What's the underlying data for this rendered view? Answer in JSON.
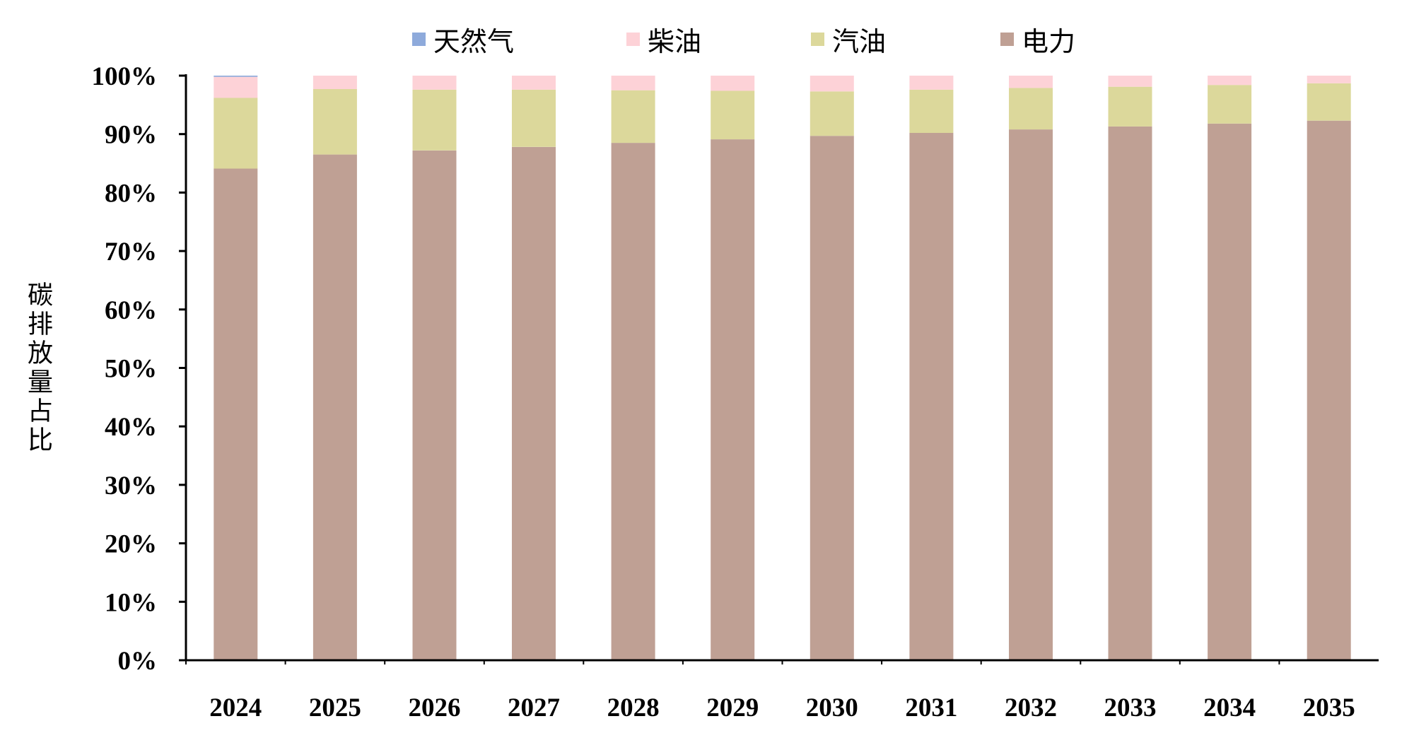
{
  "chart_data": {
    "type": "bar",
    "stacked": true,
    "ylabel": "碳排放量占比",
    "ylim": [
      0,
      100
    ],
    "yticks": [
      "0%",
      "10%",
      "20%",
      "30%",
      "40%",
      "50%",
      "60%",
      "70%",
      "80%",
      "90%",
      "100%"
    ],
    "legend_position": "top",
    "grid": false,
    "categories": [
      "2024",
      "2025",
      "2026",
      "2027",
      "2028",
      "2029",
      "2030",
      "2031",
      "2032",
      "2033",
      "2034",
      "2035"
    ],
    "series": [
      {
        "name": "电力",
        "color": "#bfa094",
        "values": [
          84.1,
          86.5,
          87.2,
          87.8,
          88.5,
          89.1,
          89.7,
          90.2,
          90.8,
          91.3,
          91.8,
          92.3
        ]
      },
      {
        "name": "汽油",
        "color": "#dcd89b",
        "values": [
          12.1,
          11.2,
          10.4,
          9.8,
          9.0,
          8.3,
          7.6,
          7.4,
          7.1,
          6.8,
          6.6,
          6.4
        ]
      },
      {
        "name": "柴油",
        "color": "#fdd2d7",
        "values": [
          3.6,
          2.3,
          2.4,
          2.4,
          2.5,
          2.6,
          2.7,
          2.4,
          2.1,
          1.9,
          1.6,
          1.3
        ]
      },
      {
        "name": "天然气",
        "color": "#8eaadb",
        "values": [
          0.2,
          0.0,
          0.0,
          0.0,
          0.0,
          0.0,
          0.0,
          0.0,
          0.0,
          0.0,
          0.0,
          0.0
        ]
      }
    ],
    "legend_order": [
      "天然气",
      "柴油",
      "汽油",
      "电力"
    ]
  }
}
